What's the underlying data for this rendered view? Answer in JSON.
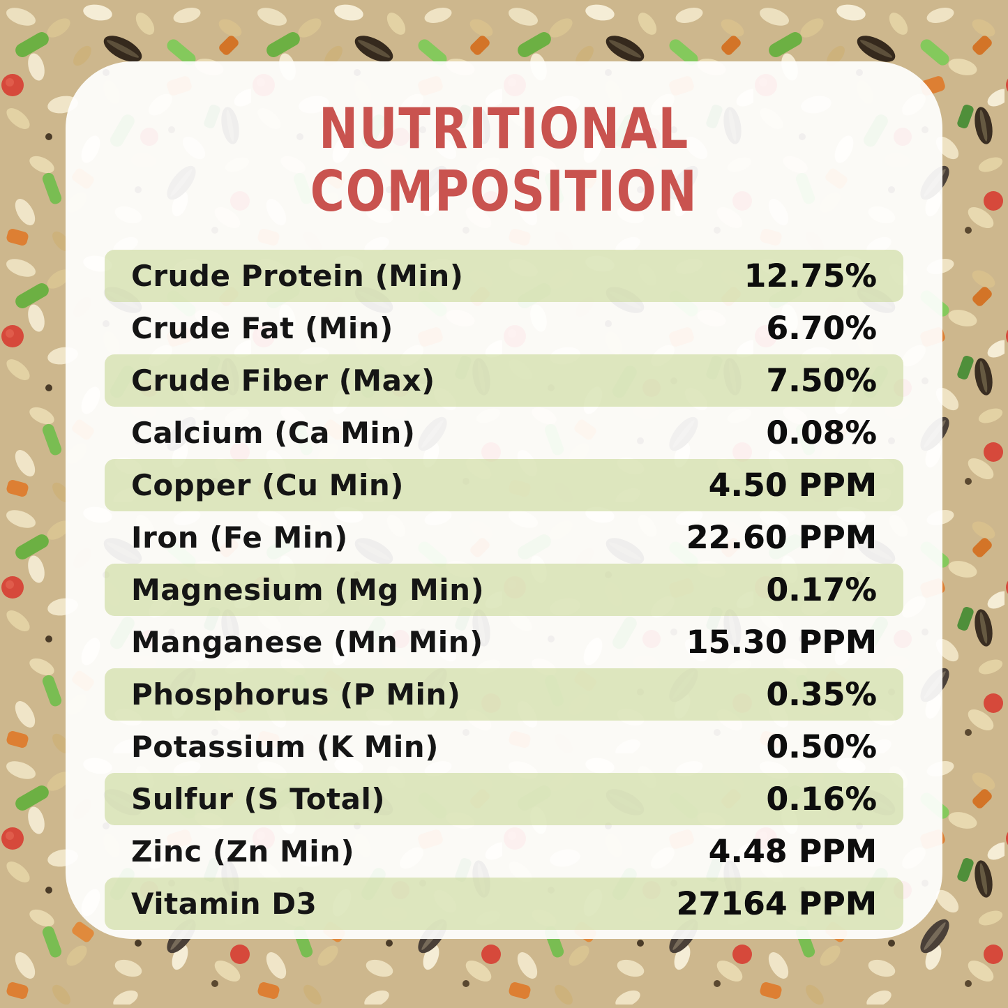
{
  "title": {
    "line1": "NUTRITIONAL",
    "line2": "COMPOSITION"
  },
  "colors": {
    "title_red": "#c9534f",
    "row_green": "#dde7bd",
    "card_white": "#ffffff",
    "text_black": "#151515"
  },
  "table": {
    "rows": [
      {
        "label": "Crude Protein (Min)",
        "value": "12.75%"
      },
      {
        "label": "Crude Fat (Min)",
        "value": "6.70%"
      },
      {
        "label": "Crude Fiber (Max)",
        "value": "7.50%"
      },
      {
        "label": "Calcium (Ca Min)",
        "value": "0.08%"
      },
      {
        "label": "Copper (Cu Min)",
        "value": "4.50 PPM"
      },
      {
        "label": "Iron (Fe Min)",
        "value": "22.60 PPM"
      },
      {
        "label": "Magnesium (Mg Min)",
        "value": "0.17%"
      },
      {
        "label": "Manganese (Mn Min)",
        "value": "15.30 PPM"
      },
      {
        "label": "Phosphorus (P Min)",
        "value": "0.35%"
      },
      {
        "label": "Potassium (K Min)",
        "value": "0.50%"
      },
      {
        "label": "Sulfur (S Total)",
        "value": "0.16%"
      },
      {
        "label": "Zinc (Zn Min)",
        "value": "4.48 PPM"
      },
      {
        "label": "Vitamin D3",
        "value": "27164 PPM"
      }
    ]
  }
}
